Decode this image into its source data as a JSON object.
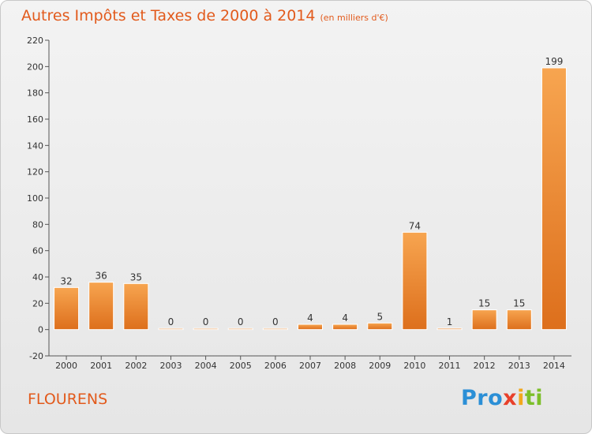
{
  "title": "Autres Impôts et Taxes de 2000 à 2014",
  "unit": "(en milliers d'€)",
  "place": "FLOURENS",
  "logo": {
    "p1": "Pro",
    "p2": "x",
    "p3": "i",
    "p4": "ti"
  },
  "colors": {
    "accent": "#e25a1c",
    "bar_top": "#f7a550",
    "bar_bottom": "#dd6f1c",
    "axis": "#555555"
  },
  "chart_data": {
    "type": "bar",
    "categories": [
      "2000",
      "2001",
      "2002",
      "2003",
      "2004",
      "2005",
      "2006",
      "2007",
      "2008",
      "2009",
      "2010",
      "2011",
      "2012",
      "2013",
      "2014"
    ],
    "values": [
      32,
      36,
      35,
      0,
      0,
      0,
      0,
      4,
      4,
      5,
      74,
      1,
      15,
      15,
      199
    ],
    "value_labels": [
      "32",
      "36",
      "35",
      "0",
      "0",
      "0",
      "0",
      "4",
      "4",
      "5",
      "74",
      "1",
      "15",
      "15",
      "199"
    ],
    "yticks": [
      -20,
      0,
      20,
      40,
      60,
      80,
      100,
      120,
      140,
      160,
      180,
      200,
      220
    ],
    "ylim": [
      -20,
      220
    ],
    "title": "Autres Impôts et Taxes de 2000 à 2014",
    "xlabel": "",
    "ylabel": "",
    "grid": false
  }
}
